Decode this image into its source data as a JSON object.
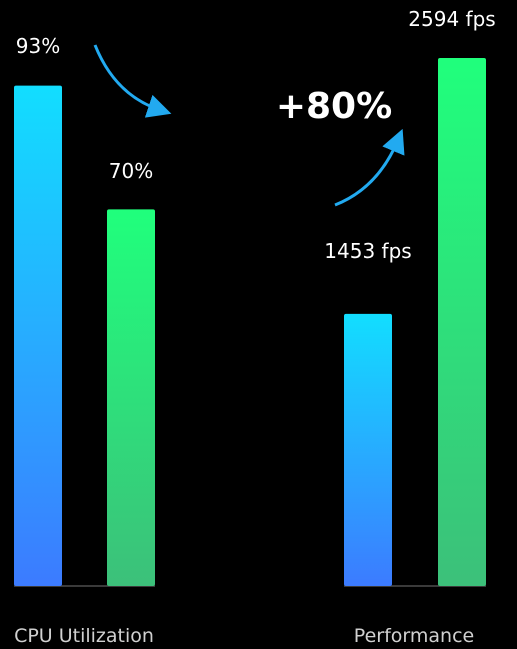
{
  "chart_data": [
    {
      "type": "bar",
      "xlabel": "CPU Utilization",
      "series": [
        {
          "values": [
            93
          ]
        },
        {
          "values": [
            70
          ]
        }
      ],
      "value_labels": [
        "93%",
        "70%"
      ],
      "ylim": [
        0,
        100
      ]
    },
    {
      "type": "bar",
      "xlabel": "Performance",
      "series": [
        {
          "values": [
            1453
          ]
        },
        {
          "values": [
            2594
          ]
        }
      ],
      "value_labels": [
        "1453 fps",
        "2594 fps"
      ],
      "annotation": "+80%"
    }
  ],
  "colors": {
    "background": "#000000",
    "series1_top": "#12DEFF",
    "series1_bottom": "#3C7BFF",
    "series2_top": "#20FF7C",
    "series2_bottom": "#3CC07A",
    "arrow": "#22AAF0"
  }
}
